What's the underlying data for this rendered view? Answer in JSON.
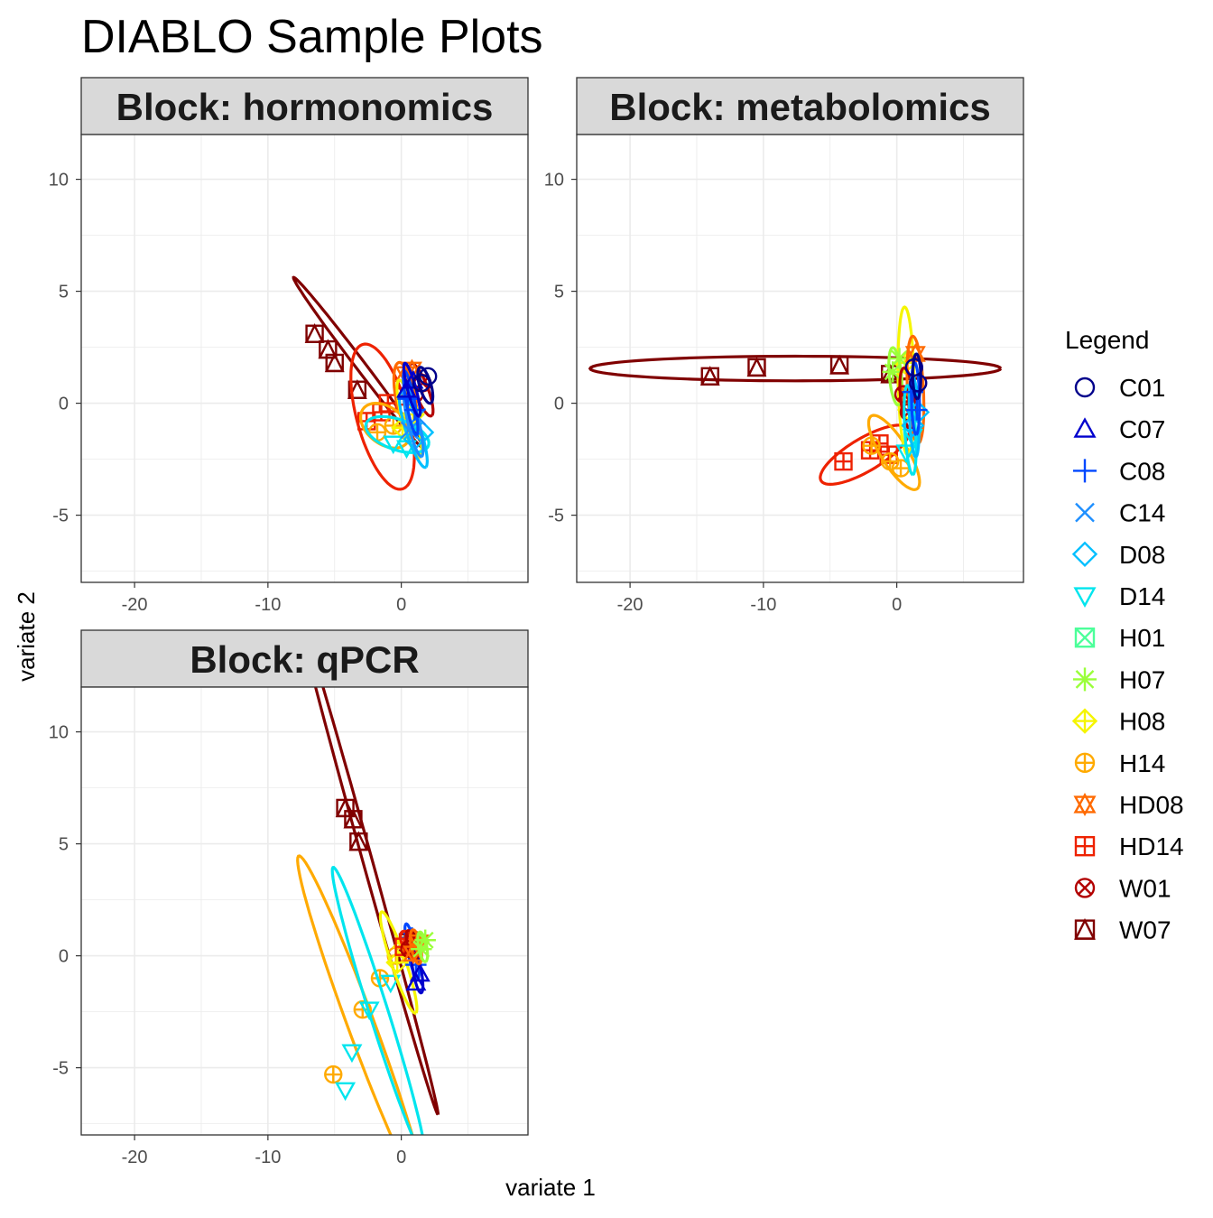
{
  "title": "DIABLO Sample Plots",
  "xlabel": "variate 1",
  "ylabel": "variate 2",
  "legend": {
    "title": "Legend",
    "entries": [
      {
        "name": "C01",
        "color": "#00008B",
        "shape": "circle"
      },
      {
        "name": "C07",
        "color": "#0000CD",
        "shape": "triangle"
      },
      {
        "name": "C08",
        "color": "#0047FF",
        "shape": "plus"
      },
      {
        "name": "C14",
        "color": "#1E8FFF",
        "shape": "cross"
      },
      {
        "name": "D08",
        "color": "#00BFFF",
        "shape": "diamond"
      },
      {
        "name": "D14",
        "color": "#00E5EE",
        "shape": "triangle-down"
      },
      {
        "name": "H01",
        "color": "#4CFF9A",
        "shape": "square-x"
      },
      {
        "name": "H07",
        "color": "#9AFF3A",
        "shape": "asterisk"
      },
      {
        "name": "H08",
        "color": "#F5F500",
        "shape": "diamond-plus"
      },
      {
        "name": "H14",
        "color": "#FFAA00",
        "shape": "circle-plus"
      },
      {
        "name": "HD08",
        "color": "#FF6A00",
        "shape": "star-of-david"
      },
      {
        "name": "HD14",
        "color": "#EE2200",
        "shape": "square-plus"
      },
      {
        "name": "W01",
        "color": "#B20000",
        "shape": "circle-x"
      },
      {
        "name": "W07",
        "color": "#800000",
        "shape": "square-triangle"
      }
    ]
  },
  "chart_data": [
    {
      "type": "scatter",
      "title": "Block: hormonomics",
      "xlim": [
        -24,
        9.5
      ],
      "ylim": [
        -8,
        12
      ],
      "xticks": [
        -20,
        -10,
        0
      ],
      "yticks": [
        -5,
        0,
        5,
        10
      ],
      "grid": true,
      "groups": [
        {
          "name": "W07",
          "points": [
            [
              -6.5,
              3.1
            ],
            [
              -5.5,
              2.4
            ],
            [
              -5.0,
              1.8
            ],
            [
              -3.3,
              0.6
            ]
          ],
          "ellipse": {
            "cx": -3.2,
            "cy": 1.8,
            "rx": 6.2,
            "ry": 0.28,
            "angle_deg": -38
          }
        },
        {
          "name": "HD14",
          "points": [
            [
              -2.6,
              -0.8
            ],
            [
              -1.5,
              -0.4
            ],
            [
              -1.0,
              0.0
            ],
            [
              0.2,
              0.3
            ]
          ],
          "ellipse": {
            "cx": -1.4,
            "cy": -0.6,
            "rx": 3.6,
            "ry": 1.8,
            "angle_deg": -60
          }
        },
        {
          "name": "W01",
          "points": [
            [
              1.0,
              0.4
            ],
            [
              1.6,
              0.9
            ]
          ],
          "ellipse": {
            "cx": 1.5,
            "cy": 0.6,
            "rx": 1.4,
            "ry": 0.45,
            "angle_deg": -55
          }
        },
        {
          "name": "HD08",
          "points": [
            [
              0.3,
              1.3
            ],
            [
              0.8,
              1.5
            ]
          ],
          "ellipse": {
            "cx": 0.3,
            "cy": 0.3,
            "rx": 1.6,
            "ry": 0.7,
            "angle_deg": -70
          }
        },
        {
          "name": "H14",
          "points": [
            [
              -1.8,
              -1.3
            ],
            [
              -0.6,
              -1.0
            ]
          ],
          "ellipse": {
            "cx": -1.2,
            "cy": -1.0,
            "rx": 1.9,
            "ry": 0.9,
            "angle_deg": -15
          }
        },
        {
          "name": "H08",
          "points": [
            [
              0.1,
              -1.1
            ],
            [
              0.9,
              -0.5
            ]
          ],
          "ellipse": {
            "cx": 0.6,
            "cy": -0.7,
            "rx": 1.9,
            "ry": 0.5,
            "angle_deg": -65
          }
        },
        {
          "name": "D14",
          "points": [
            [
              -0.6,
              -1.8
            ],
            [
              0.4,
              -2.0
            ]
          ],
          "ellipse": {
            "cx": -0.3,
            "cy": -1.4,
            "rx": 2.4,
            "ry": 0.7,
            "angle_deg": -10
          }
        },
        {
          "name": "D08",
          "points": [
            [
              1.0,
              -1.6
            ],
            [
              1.6,
              -1.3
            ]
          ],
          "ellipse": {
            "cx": 0.9,
            "cy": -1.2,
            "rx": 1.9,
            "ry": 0.5,
            "angle_deg": -60
          }
        },
        {
          "name": "C14",
          "points": [
            [
              0.6,
              -1.2
            ],
            [
              1.2,
              -0.6
            ]
          ],
          "ellipse": {
            "cx": 0.9,
            "cy": -0.8,
            "rx": 1.7,
            "ry": 0.4,
            "angle_deg": -68
          }
        },
        {
          "name": "C08",
          "points": [
            [
              0.5,
              0.2
            ],
            [
              1.0,
              -0.3
            ]
          ],
          "ellipse": {
            "cx": 0.7,
            "cy": 0.0,
            "rx": 1.5,
            "ry": 0.3,
            "angle_deg": -72
          }
        },
        {
          "name": "C07",
          "points": [
            [
              0.9,
              1.0
            ],
            [
              0.4,
              0.6
            ]
          ],
          "ellipse": {
            "cx": 0.8,
            "cy": 0.6,
            "rx": 1.3,
            "ry": 0.3,
            "angle_deg": -65
          }
        },
        {
          "name": "C01",
          "points": [
            [
              2.0,
              1.2
            ],
            [
              1.5,
              0.9
            ]
          ],
          "ellipse": {
            "cx": 1.8,
            "cy": 0.8,
            "rx": 0.9,
            "ry": 0.4,
            "angle_deg": -60
          }
        }
      ]
    },
    {
      "type": "scatter",
      "title": "Block: metabolomics",
      "xlim": [
        -24,
        9.5
      ],
      "ylim": [
        -8,
        12
      ],
      "xticks": [
        -20,
        -10,
        0
      ],
      "yticks": [
        -5,
        0,
        5,
        10
      ],
      "grid": true,
      "groups": [
        {
          "name": "W07",
          "points": [
            [
              -14.0,
              1.2
            ],
            [
              -10.5,
              1.6
            ],
            [
              -4.3,
              1.7
            ],
            [
              -0.5,
              1.3
            ]
          ],
          "ellipse": {
            "cx": -7.6,
            "cy": 1.55,
            "rx": 15.4,
            "ry": 0.55,
            "angle_deg": 0
          }
        },
        {
          "name": "HD14",
          "points": [
            [
              -4.0,
              -2.6
            ],
            [
              -2.0,
              -2.1
            ],
            [
              -1.3,
              -1.8
            ],
            [
              -0.6,
              -2.3
            ]
          ],
          "ellipse": {
            "cx": -2.4,
            "cy": -2.3,
            "rx": 3.5,
            "ry": 0.8,
            "angle_deg": 18
          }
        },
        {
          "name": "H14",
          "points": [
            [
              -1.9,
              -1.9
            ],
            [
              -0.5,
              -2.6
            ],
            [
              0.3,
              -2.9
            ]
          ],
          "ellipse": {
            "cx": -0.2,
            "cy": -2.2,
            "rx": 2.4,
            "ry": 0.8,
            "angle_deg": -40
          }
        },
        {
          "name": "H08",
          "points": [
            [
              0.6,
              1.8
            ],
            [
              0.9,
              -0.3
            ]
          ],
          "ellipse": {
            "cx": 0.7,
            "cy": 1.0,
            "rx": 3.3,
            "ry": 0.6,
            "angle_deg": -88
          }
        },
        {
          "name": "H07",
          "points": [
            [
              -0.3,
              1.4
            ],
            [
              0.2,
              2.0
            ]
          ],
          "ellipse": {
            "cx": -0.1,
            "cy": 1.2,
            "rx": 1.3,
            "ry": 0.45,
            "angle_deg": -80
          }
        },
        {
          "name": "HD08",
          "points": [
            [
              1.4,
              2.2
            ],
            [
              1.0,
              0.4
            ]
          ],
          "ellipse": {
            "cx": 1.4,
            "cy": 0.6,
            "rx": 2.4,
            "ry": 0.6,
            "angle_deg": -85
          }
        },
        {
          "name": "W01",
          "points": [
            [
              0.5,
              0.4
            ],
            [
              0.9,
              -0.4
            ]
          ],
          "ellipse": {
            "cx": 0.8,
            "cy": 0.2,
            "rx": 1.4,
            "ry": 0.5,
            "angle_deg": -78
          }
        },
        {
          "name": "D14",
          "points": [
            [
              0.7,
              -2.2
            ],
            [
              1.2,
              -1.5
            ]
          ],
          "ellipse": {
            "cx": 1.0,
            "cy": -1.2,
            "rx": 2.0,
            "ry": 0.4,
            "angle_deg": -84
          }
        },
        {
          "name": "D08",
          "points": [
            [
              1.2,
              -1.0
            ],
            [
              1.6,
              -0.4
            ]
          ],
          "ellipse": {
            "cx": 1.3,
            "cy": -0.6,
            "rx": 1.8,
            "ry": 0.35,
            "angle_deg": -86
          }
        },
        {
          "name": "C08",
          "points": [
            [
              1.5,
              -0.3
            ],
            [
              1.2,
              0.5
            ]
          ],
          "ellipse": {
            "cx": 1.4,
            "cy": 0.2,
            "rx": 1.6,
            "ry": 0.3,
            "angle_deg": -88
          }
        },
        {
          "name": "C01",
          "points": [
            [
              1.6,
              0.9
            ],
            [
              1.3,
              1.6
            ]
          ],
          "ellipse": {
            "cx": 1.5,
            "cy": 1.2,
            "rx": 1.0,
            "ry": 0.3,
            "angle_deg": -88
          }
        }
      ]
    },
    {
      "type": "scatter",
      "title": "Block: qPCR",
      "xlim": [
        -24,
        9.5
      ],
      "ylim": [
        -8,
        12
      ],
      "xticks": [
        -20,
        -10,
        0
      ],
      "yticks": [
        -5,
        0,
        5,
        10
      ],
      "grid": true,
      "groups": [
        {
          "name": "W07",
          "points": [
            [
              -4.2,
              6.6
            ],
            [
              -3.6,
              6.1
            ],
            [
              -3.2,
              5.1
            ],
            [
              0.5,
              0.6
            ]
          ],
          "ellipse": {
            "cx": -2.7,
            "cy": 4.6,
            "rx": 12.9,
            "ry": 0.33,
            "angle_deg": -65
          }
        },
        {
          "name": "H14",
          "points": [
            [
              -5.1,
              -5.3
            ],
            [
              -2.9,
              -2.4
            ],
            [
              -1.6,
              -1.0
            ],
            [
              -0.4,
              0.0
            ]
          ],
          "ellipse": {
            "cx": -3.0,
            "cy": -3.1,
            "rx": 8.9,
            "ry": 0.9,
            "angle_deg": -58
          }
        },
        {
          "name": "D14",
          "points": [
            [
              -4.2,
              -6.0
            ],
            [
              -3.7,
              -4.3
            ],
            [
              -2.4,
              -2.4
            ],
            [
              -0.8,
              -1.2
            ]
          ],
          "ellipse": {
            "cx": -1.7,
            "cy": -2.5,
            "rx": 7.3,
            "ry": 0.65,
            "angle_deg": -62
          }
        },
        {
          "name": "H08",
          "points": [
            [
              -0.3,
              -0.3
            ],
            [
              0.2,
              0.4
            ]
          ],
          "ellipse": {
            "cx": -0.2,
            "cy": -0.3,
            "rx": 2.6,
            "ry": 0.5,
            "angle_deg": -60
          }
        },
        {
          "name": "C08",
          "points": [
            [
              1.1,
              -0.4
            ],
            [
              0.8,
              0.8
            ]
          ],
          "ellipse": {
            "cx": 0.8,
            "cy": 0.2,
            "rx": 1.3,
            "ry": 0.3,
            "angle_deg": -70
          }
        },
        {
          "name": "C07",
          "points": [
            [
              1.1,
              -1.2
            ],
            [
              1.4,
              -0.8
            ]
          ],
          "ellipse": {
            "cx": 1.2,
            "cy": -0.7,
            "rx": 1.0,
            "ry": 0.3,
            "angle_deg": -72
          }
        },
        {
          "name": "HD14",
          "points": [
            [
              0.2,
              0.4
            ],
            [
              0.9,
              0.5
            ]
          ],
          "ellipse": {
            "cx": 0.6,
            "cy": 0.5,
            "rx": 0.8,
            "ry": 0.4,
            "angle_deg": -40
          }
        },
        {
          "name": "W01",
          "points": [
            [
              0.6,
              0.3
            ],
            [
              1.0,
              0.7
            ]
          ],
          "ellipse": {
            "cx": 0.8,
            "cy": 0.5,
            "rx": 0.7,
            "ry": 0.3,
            "angle_deg": -60
          }
        },
        {
          "name": "HD08",
          "points": [
            [
              1.3,
              0.6
            ],
            [
              0.9,
              0.1
            ]
          ],
          "ellipse": {
            "cx": 1.1,
            "cy": 0.4,
            "rx": 0.8,
            "ry": 0.35,
            "angle_deg": -70
          }
        },
        {
          "name": "H07",
          "points": [
            [
              1.5,
              0.3
            ],
            [
              1.8,
              0.7
            ]
          ],
          "ellipse": {
            "cx": 1.6,
            "cy": 0.4,
            "rx": 0.7,
            "ry": 0.3,
            "angle_deg": -70
          }
        }
      ]
    }
  ]
}
